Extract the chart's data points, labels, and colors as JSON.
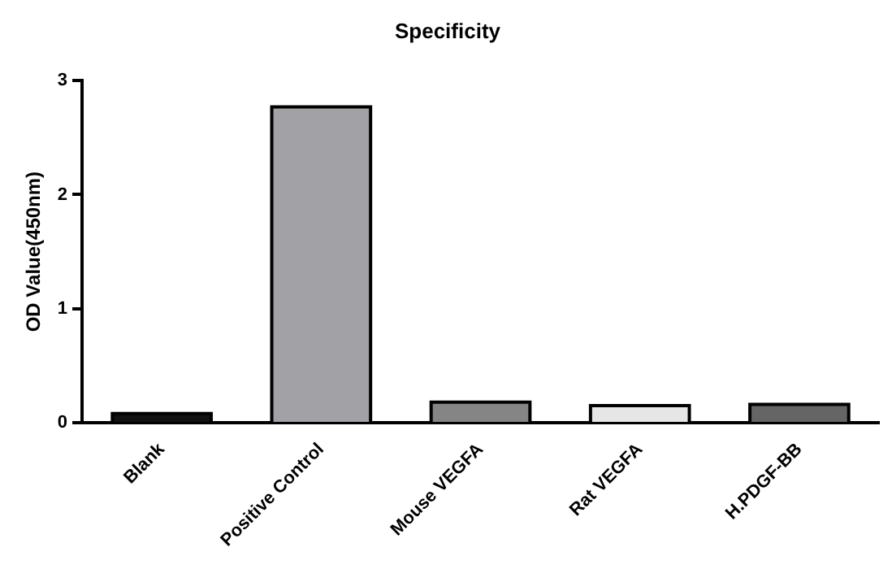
{
  "chart_data": {
    "type": "bar",
    "title": "Specificity",
    "ylabel": "OD Value(450nm)",
    "categories": [
      "Blank",
      "Positive Control",
      "Mouse VEGFA",
      "Rat VEGFA",
      "H.PDGF-BB"
    ],
    "values": [
      0.08,
      2.77,
      0.18,
      0.15,
      0.16
    ],
    "colors": [
      "#111111",
      "#a1a1a6",
      "#858585",
      "#e6e6e6",
      "#656565"
    ],
    "ylim": [
      0,
      3
    ],
    "yticks": [
      0,
      1,
      2,
      3
    ],
    "grid": false,
    "legend": false
  }
}
